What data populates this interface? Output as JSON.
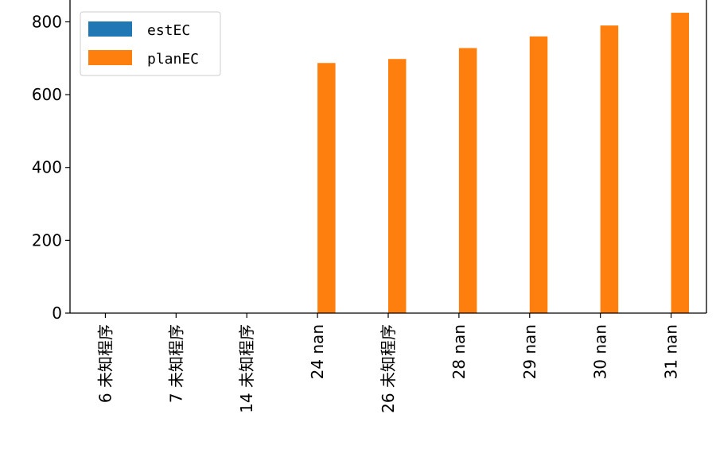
{
  "chart_data": {
    "type": "bar",
    "categories": [
      "6 未知程序",
      "7 未知程序",
      "14 未知程序",
      "24 nan",
      "26 未知程序",
      "28 nan",
      "29 nan",
      "30 nan",
      "31 nan"
    ],
    "series": [
      {
        "name": "estEC",
        "values": [
          0,
          0,
          0,
          0,
          0,
          0,
          0,
          0,
          0
        ],
        "color": "#1f77b4"
      },
      {
        "name": "planEC",
        "values": [
          0,
          0,
          0,
          687,
          698,
          728,
          760,
          790,
          825
        ],
        "color": "#ff7f0e"
      }
    ],
    "yticks": [
      0,
      200,
      400,
      600,
      800
    ],
    "ylim": [
      0,
      860
    ],
    "legend_position": "upper-left",
    "grid": false
  }
}
